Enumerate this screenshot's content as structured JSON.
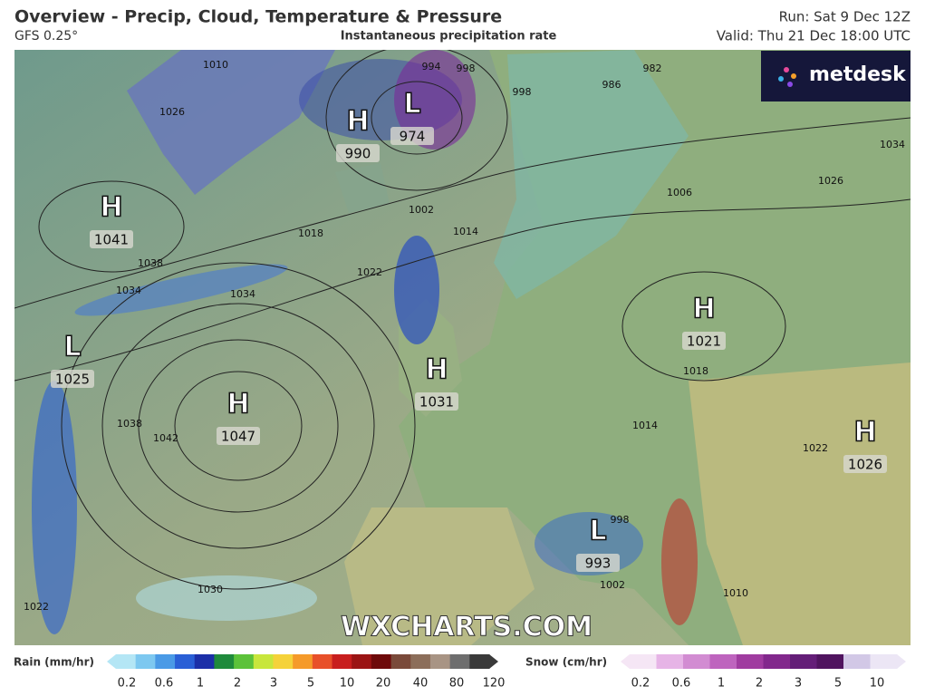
{
  "header": {
    "title": "Overview - Precip, Cloud, Temperature & Pressure",
    "model": "GFS 0.25°",
    "subtitle": "Instantaneous precipitation rate",
    "run": "Run: Sat 9 Dec 12Z",
    "valid": "Valid: Thu 21 Dec 18:00 UTC"
  },
  "logo": "metdesk",
  "watermark": "WXCHARTS.COM",
  "pressure_centers": [
    {
      "symbol": "H",
      "value": 1041
    },
    {
      "symbol": "H",
      "value": 990
    },
    {
      "symbol": "L",
      "value": 974
    },
    {
      "symbol": "H",
      "value": 1047
    },
    {
      "symbol": "L",
      "value": 1025
    },
    {
      "symbol": "H",
      "value": 1031
    },
    {
      "symbol": "H",
      "value": 1021
    },
    {
      "symbol": "H",
      "value": 1026
    },
    {
      "symbol": "L",
      "value": 993
    }
  ],
  "isobar_labels": [
    1010,
    1026,
    1038,
    1034,
    1034,
    1018,
    1022,
    1002,
    1014,
    994,
    998,
    998,
    986,
    982,
    1006,
    1026,
    1034,
    1038,
    1042,
    1030,
    1022,
    1018,
    1014,
    1022,
    998,
    1002,
    1010
  ],
  "legend": {
    "rain": {
      "title": "Rain (mm/hr)",
      "labels": [
        0.2,
        0.6,
        1,
        2,
        3,
        5,
        10,
        20,
        40,
        80,
        120
      ],
      "colors": [
        "#b4e6f5",
        "#7dc8f0",
        "#4a9ae6",
        "#2a5fd6",
        "#1c2fa8",
        "#1f8a3c",
        "#5cc23a",
        "#c8e63c",
        "#f5d23a",
        "#f59a2a",
        "#e8502a",
        "#c81e1e",
        "#9b1414",
        "#6e0a0a",
        "#7a4a3a",
        "#8c6e5a",
        "#a89484",
        "#6e6e6e",
        "#3a3a3a"
      ]
    },
    "snow": {
      "title": "Snow (cm/hr)",
      "labels": [
        0.2,
        0.6,
        1,
        2,
        3,
        5,
        10
      ],
      "colors": [
        "#f5e6f5",
        "#e6b4e6",
        "#d28cd2",
        "#be64be",
        "#a03ca0",
        "#82288c",
        "#641e78",
        "#50145f",
        "#d2c8e6",
        "#ece6f5"
      ]
    }
  }
}
